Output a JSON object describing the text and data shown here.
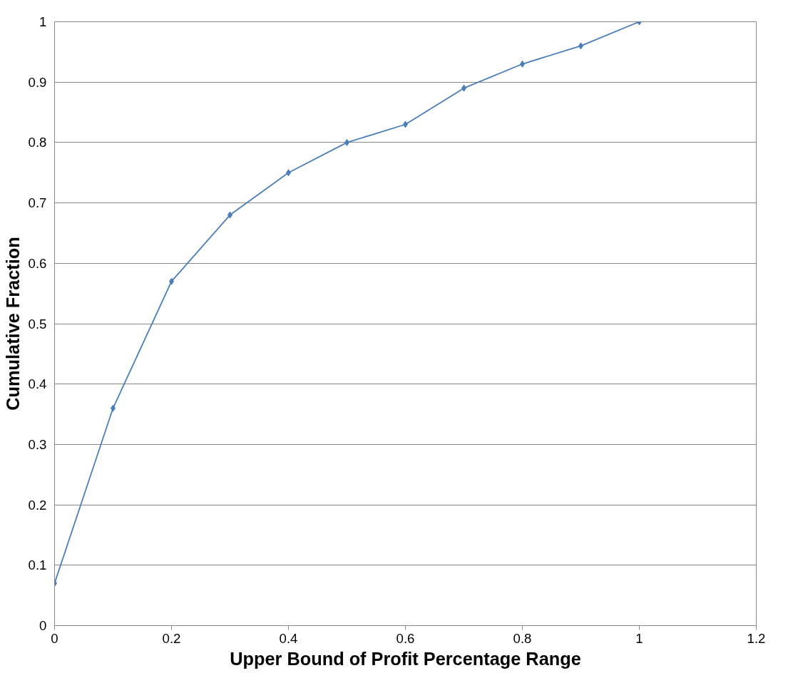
{
  "chart_data": {
    "type": "line",
    "xlabel": "Upper Bound of Profit Percentage Range",
    "ylabel": "Cumulative Fraction",
    "x": [
      0,
      0.1,
      0.2,
      0.3,
      0.4,
      0.5,
      0.6,
      0.7,
      0.8,
      0.9,
      1
    ],
    "series": [
      {
        "color": "#4a7ebb",
        "values": [
          0.07,
          0.36,
          0.57,
          0.68,
          0.75,
          0.8,
          0.83,
          0.89,
          0.93,
          0.96,
          1
        ]
      }
    ],
    "xlim": [
      0,
      1.2
    ],
    "xticks": [
      0,
      0.2,
      0.4,
      0.6,
      0.8,
      1,
      1.2
    ],
    "ylim": [
      0,
      1
    ],
    "yticks": [
      0,
      0.1,
      0.2,
      0.3,
      0.4,
      0.5,
      0.6,
      0.7,
      0.8,
      0.9,
      1
    ],
    "grid": "y",
    "marker": "diamond",
    "line_style": "solid"
  }
}
